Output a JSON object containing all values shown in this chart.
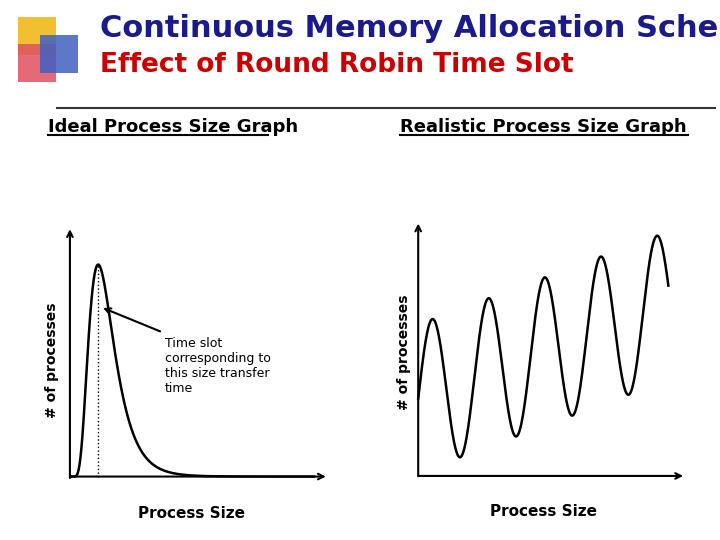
{
  "title1": "Continuous Memory Allocation Scheme",
  "title2": "Effect of Round Robin Time Slot",
  "title1_color": "#1a1a8c",
  "title2_color": "#cc0000",
  "bg_color": "#ffffff",
  "left_label": "Ideal Process Size Graph",
  "right_label": "Realistic Process Size Graph",
  "ylabel_left": "# of processes",
  "ylabel_right": "# of processes",
  "xlabel_left": "Process Size",
  "xlabel_right": "Process Size",
  "annotation": "Time slot\ncorresponding to\nthis size transfer\ntime",
  "square_yellow": "#f0c030",
  "square_red": "#e05060",
  "square_blue": "#4060c0"
}
